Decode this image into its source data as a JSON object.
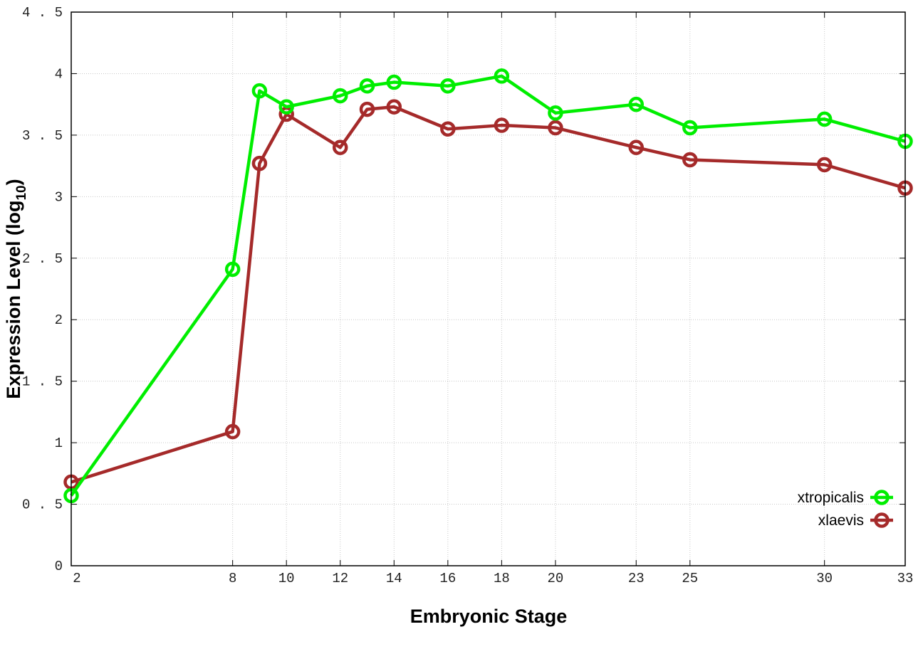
{
  "chart_data": {
    "type": "line",
    "title": "",
    "xlabel": "Embryonic Stage",
    "ylabel": "Expression Level (log",
    "ylabel_subscript": "10",
    "ylabel_close": ")",
    "x": [
      2,
      8,
      9,
      10,
      12,
      13,
      14,
      16,
      18,
      20,
      23,
      25,
      30,
      33
    ],
    "xticks": [
      "2",
      "8",
      "10",
      "12",
      "14",
      "16",
      "18",
      "20",
      "23",
      "25",
      "30",
      "33"
    ],
    "xtick_values": [
      2,
      8,
      10,
      12,
      14,
      16,
      18,
      20,
      23,
      25,
      30,
      33
    ],
    "yticks": [
      "0",
      "0.5",
      "1",
      "1.5",
      "2",
      "2.5",
      "3",
      "3.5",
      "4",
      "4.5"
    ],
    "ytick_values": [
      0,
      0.5,
      1,
      1.5,
      2,
      2.5,
      3,
      3.5,
      4,
      4.5
    ],
    "xlim": [
      2,
      33
    ],
    "ylim": [
      0,
      4.5
    ],
    "grid": true,
    "legend_position": "bottom-right",
    "series": [
      {
        "name": "xtropicalis",
        "color": "#00ee00",
        "values": [
          0.57,
          2.41,
          3.86,
          3.73,
          3.82,
          3.9,
          3.93,
          3.9,
          3.98,
          3.68,
          3.75,
          3.56,
          3.63,
          3.45
        ]
      },
      {
        "name": "xlaevis",
        "color": "#a52a2a",
        "values": [
          0.68,
          1.09,
          3.27,
          3.67,
          3.4,
          3.71,
          3.73,
          3.55,
          3.58,
          3.56,
          3.4,
          3.3,
          3.26,
          3.07
        ]
      }
    ]
  }
}
